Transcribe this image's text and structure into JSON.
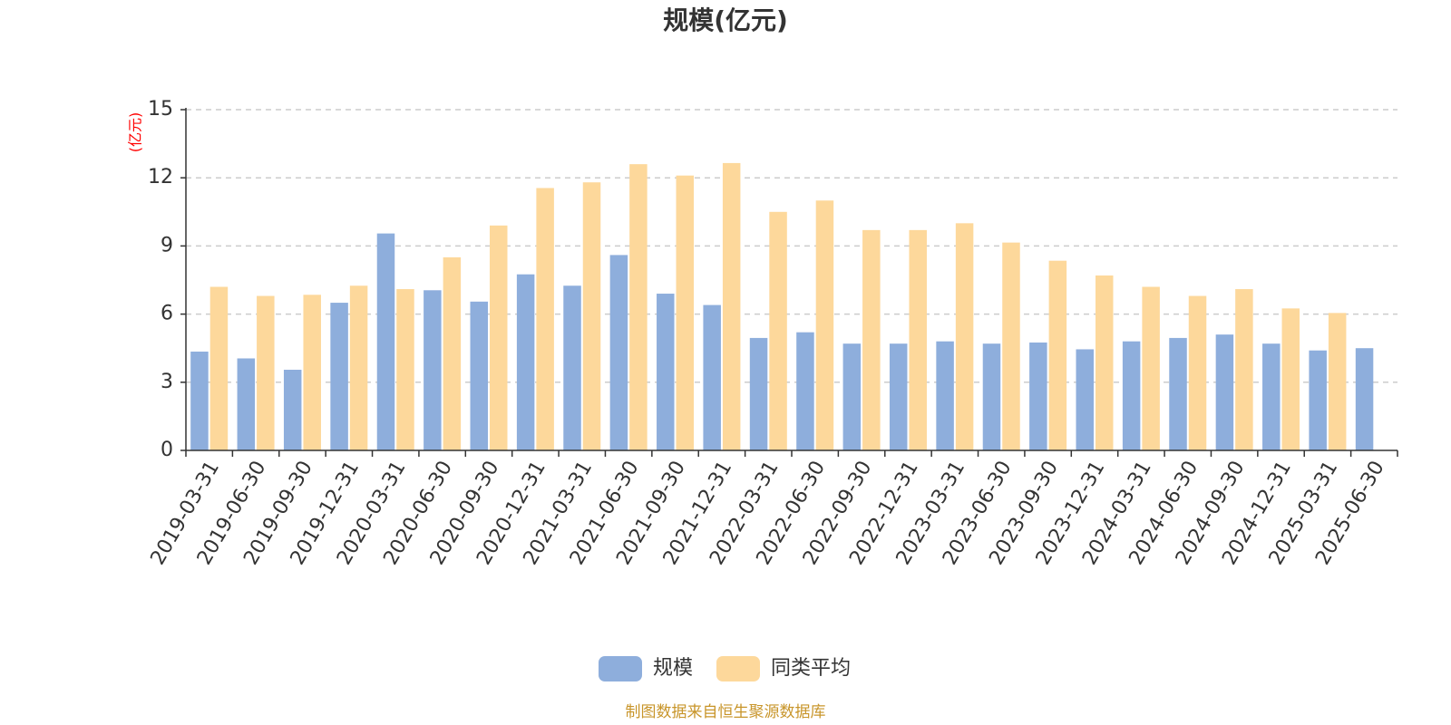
{
  "chart_data": {
    "type": "bar",
    "title": "规模(亿元)",
    "ylabel": "(亿元)",
    "ylim": [
      0,
      15
    ],
    "yticks": [
      0,
      3,
      6,
      9,
      12,
      15
    ],
    "grid": true,
    "legend_position": "bottom",
    "categories": [
      "2019-03-31",
      "2019-06-30",
      "2019-09-30",
      "2019-12-31",
      "2020-03-31",
      "2020-06-30",
      "2020-09-30",
      "2020-12-31",
      "2021-03-31",
      "2021-06-30",
      "2021-09-30",
      "2021-12-31",
      "2022-03-31",
      "2022-06-30",
      "2022-09-30",
      "2022-12-31",
      "2023-03-31",
      "2023-06-30",
      "2023-09-30",
      "2023-12-31",
      "2024-03-31",
      "2024-06-30",
      "2024-09-30",
      "2024-12-31",
      "2025-03-31",
      "2025-06-30"
    ],
    "series": [
      {
        "name": "规模",
        "color": "#8eaedc",
        "values": [
          4.35,
          4.05,
          3.55,
          6.5,
          9.55,
          7.05,
          6.55,
          7.75,
          7.25,
          8.6,
          6.9,
          6.4,
          4.95,
          5.2,
          4.7,
          4.7,
          4.8,
          4.7,
          4.75,
          4.45,
          4.8,
          4.95,
          5.1,
          4.7,
          4.4,
          4.5
        ]
      },
      {
        "name": "同类平均",
        "color": "#fdd89b",
        "values": [
          7.2,
          6.8,
          6.85,
          7.25,
          7.1,
          8.5,
          9.9,
          11.55,
          11.8,
          12.6,
          12.1,
          12.65,
          10.5,
          11.0,
          9.7,
          9.7,
          10.0,
          9.15,
          8.35,
          7.7,
          7.2,
          6.8,
          7.1,
          6.25,
          6.05,
          null
        ]
      }
    ],
    "source": "制图数据来自恒生聚源数据库",
    "colors": {
      "axis": "#333333",
      "grid": "#cccccc",
      "unit": "#ff0000",
      "source": "#c8952a"
    }
  }
}
